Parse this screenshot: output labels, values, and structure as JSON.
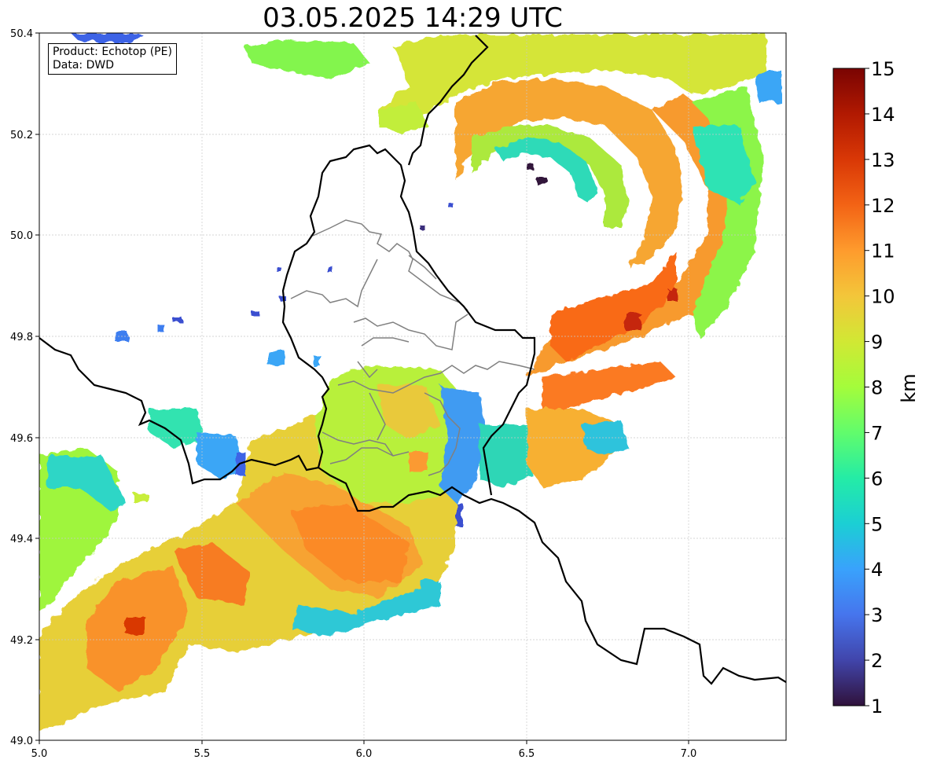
{
  "title": "03.05.2025 14:29 UTC",
  "info": {
    "product": "Product: Echotop (PE)",
    "data": "Data: DWD"
  },
  "x_ticks": [
    "5.0",
    "5.5",
    "6.0",
    "6.5",
    "7.0"
  ],
  "y_ticks": [
    "49.0",
    "49.2",
    "49.4",
    "49.6",
    "49.8",
    "50.0",
    "50.2",
    "50.4"
  ],
  "x_range": [
    5.0,
    7.3
  ],
  "y_range": [
    49.0,
    50.4
  ],
  "colorbar": {
    "label": "km",
    "min": 1,
    "max": 15,
    "ticks": [
      "1",
      "2",
      "3",
      "4",
      "5",
      "6",
      "7",
      "8",
      "9",
      "10",
      "11",
      "12",
      "13",
      "14",
      "15"
    ],
    "colormap": [
      "#30123b",
      "#4145ab",
      "#4675ed",
      "#39a2fc",
      "#1bcfd4",
      "#24eca6",
      "#61fc6c",
      "#a4fc3b",
      "#d1e834",
      "#f3c63a",
      "#fe9b2d",
      "#f36315",
      "#d93806",
      "#b11901",
      "#7a0402"
    ]
  }
}
